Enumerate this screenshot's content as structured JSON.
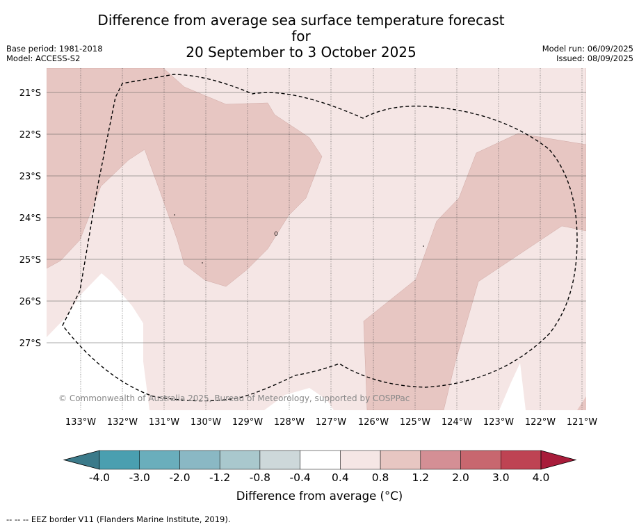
{
  "header": {
    "title_line1": "Difference from average sea surface temperature forecast for",
    "title_line2": "20 September to 3 October 2025",
    "base_period": "Base period: 1981-2018",
    "model": "Model: ACCESS-S2",
    "model_run": "Model run: 06/09/2025",
    "issued": "Issued: 08/09/2025"
  },
  "map": {
    "lon_labels": [
      "133°W",
      "132°W",
      "131°W",
      "130°W",
      "129°W",
      "128°W",
      "127°W",
      "126°W",
      "125°W",
      "124°W",
      "123°W",
      "122°W",
      "121°W"
    ],
    "lat_labels": [
      "21°S",
      "22°S",
      "23°S",
      "24°S",
      "25°S",
      "26°S",
      "27°S"
    ],
    "copyright": "© Commonwealth of Australia 2025, Bureau of Meteorology, supported by COSPPac"
  },
  "colorbar": {
    "tick_labels": [
      "-4.0",
      "-3.0",
      "-2.0",
      "-1.2",
      "-0.8",
      "-0.4",
      "0.4",
      "0.8",
      "1.2",
      "2.0",
      "3.0",
      "4.0"
    ],
    "colors": [
      "#3b7a8a",
      "#4a9fb0",
      "#6aaebc",
      "#8ab8c4",
      "#a9c8cd",
      "#cdd8da",
      "#ffffff",
      "#f5e6e5",
      "#e7c6c2",
      "#d48f95",
      "#c8676f",
      "#be4353",
      "#a81c3a"
    ],
    "label": "Difference from average (°C)"
  },
  "legend": {
    "eez_text": "--  --  -- EEZ border V11 (Flanders Marine Institute, 2019)."
  }
}
